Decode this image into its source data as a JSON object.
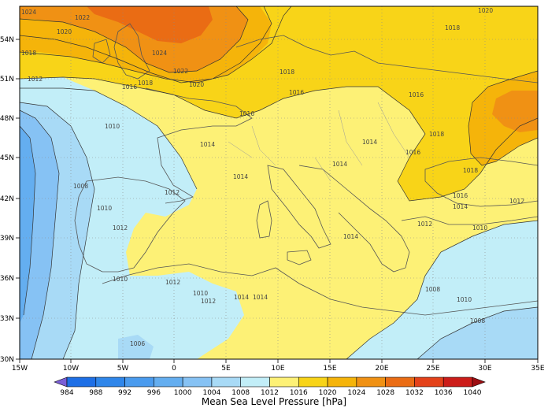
{
  "map": {
    "lat_labels": [
      "54N",
      "51N",
      "48N",
      "45N",
      "42N",
      "39N",
      "36N",
      "33N",
      "30N"
    ],
    "lon_labels": [
      "15W",
      "10W",
      "5W",
      "0",
      "5E",
      "10E",
      "15E",
      "20E",
      "25E",
      "30E",
      "35E"
    ],
    "contour_labels": [
      "1024",
      "1022",
      "1020",
      "1018",
      "1024",
      "1022",
      "1020",
      "1012",
      "1018",
      "1016",
      "1018",
      "1016",
      "1018",
      "1020",
      "1010",
      "1016",
      "1014",
      "1014",
      "1014",
      "1014",
      "1016",
      "1018",
      "1016",
      "1018",
      "1008",
      "1010",
      "1012",
      "1012",
      "1016",
      "1014",
      "1012",
      "1014",
      "1010",
      "1012",
      "1010",
      "1012",
      "1014",
      "1014",
      "1012",
      "1010",
      "1008",
      "1008",
      "1010",
      "1006"
    ]
  },
  "colorbar": {
    "title": "Mean Sea Level Pressure [hPa]",
    "ticks": [
      "984",
      "988",
      "992",
      "996",
      "1000",
      "1004",
      "1008",
      "1012",
      "1016",
      "1020",
      "1024",
      "1028",
      "1032",
      "1036",
      "1040"
    ],
    "colors": [
      "#7a5fd6",
      "#1e6fe6",
      "#2f86ea",
      "#4a9bee",
      "#64aef0",
      "#86c2f4",
      "#a8daf6",
      "#c2eef8",
      "#fdf176",
      "#f8d418",
      "#f5b40a",
      "#f09114",
      "#ea6c14",
      "#e4421a",
      "#cc1d1a",
      "#9d0e12"
    ]
  }
}
